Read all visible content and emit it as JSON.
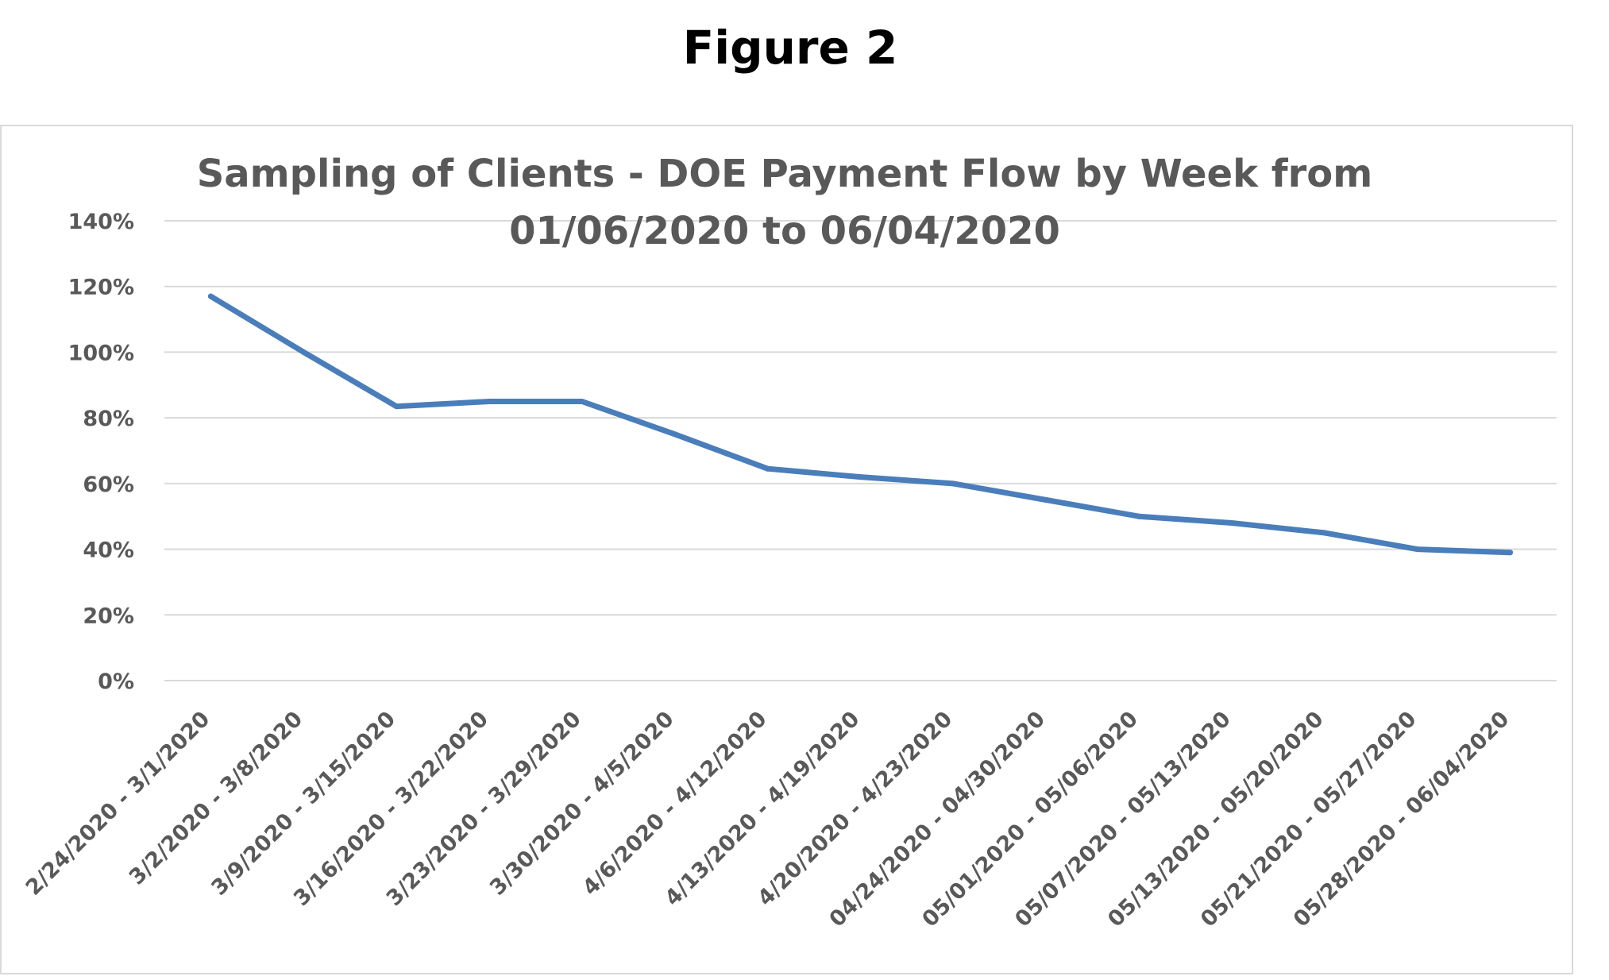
{
  "figure_label": "Figure 2",
  "chart_data": {
    "type": "line",
    "title_lines": [
      "Sampling of Clients - DOE Payment Flow by Week from",
      "01/06/2020 to 06/04/2020"
    ],
    "xlabel": "",
    "ylabel": "",
    "categories": [
      "2/24/2020 - 3/1/2020",
      "3/2/2020 - 3/8/2020",
      "3/9/2020 - 3/15/2020",
      "3/16/2020 - 3/22/2020",
      "3/23/2020 - 3/29/2020",
      "3/30/2020 - 4/5/2020",
      "4/6/2020 - 4/12/2020",
      "4/13/2020 - 4/19/2020",
      "4/20/2020 - 4/23/2020",
      "04/24/2020 - 04/30/2020",
      "05/01/2020 - 05/06/2020",
      "05/07/2020 - 05/13/2020",
      "05/13/2020 - 05/20/2020",
      "05/21/2020 - 05/27/2020",
      "05/28/2020 - 06/04/2020"
    ],
    "series": [
      {
        "values": [
          117,
          100,
          83.5,
          85,
          85,
          75,
          64.5,
          62,
          60,
          55,
          50,
          48,
          45,
          40,
          39
        ],
        "color": "#4a7ebb"
      }
    ],
    "y_ticks": [
      "0%",
      "20%",
      "40%",
      "60%",
      "80%",
      "100%",
      "120%",
      "140%"
    ],
    "y_tick_values": [
      0,
      20,
      40,
      60,
      80,
      100,
      120,
      140
    ],
    "ylim": [
      0,
      140
    ],
    "y_unit": "%",
    "grid": true,
    "legend": "none"
  }
}
